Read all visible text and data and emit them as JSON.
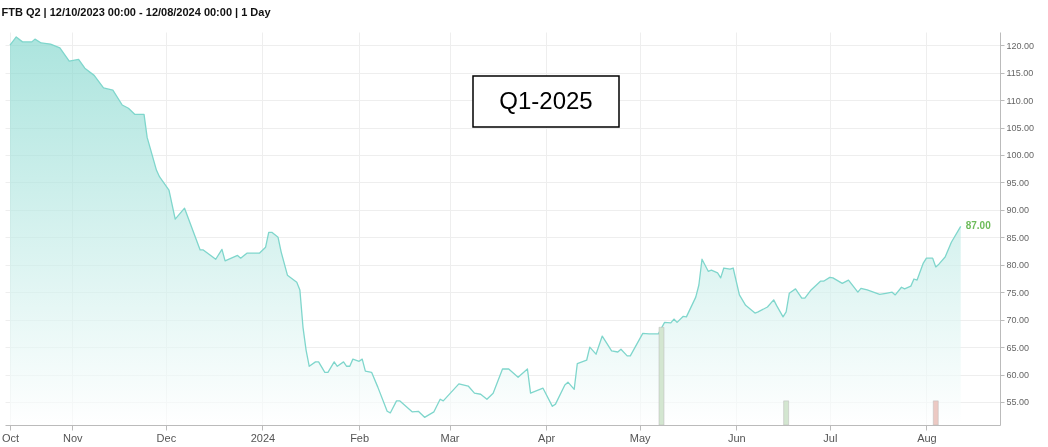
{
  "chart_data": {
    "type": "area",
    "title": "FTB Q2 | 12/10/2023 00:00 - 12/08/2024 00:00 | 1 Day",
    "annotations": [
      "Q1-2025",
      {
        "text": "87.00",
        "x": "2024-08-12",
        "y": 87
      }
    ],
    "xlim": [
      "2023-10-12",
      "2024-08-23"
    ],
    "xticks": [
      {
        "value": "2023-10-12",
        "label": "Oct"
      },
      {
        "value": "2023-11-01",
        "label": "Nov"
      },
      {
        "value": "2023-12-01",
        "label": "Dec"
      },
      {
        "value": "2024-01-01",
        "label": "2024"
      },
      {
        "value": "2024-02-01",
        "label": "Feb"
      },
      {
        "value": "2024-03-01",
        "label": "Mar"
      },
      {
        "value": "2024-04-01",
        "label": "Apr"
      },
      {
        "value": "2024-05-01",
        "label": "May"
      },
      {
        "value": "2024-06-01",
        "label": "Jun"
      },
      {
        "value": "2024-07-01",
        "label": "Jul"
      },
      {
        "value": "2024-08-01",
        "label": "Aug"
      }
    ],
    "ylim": [
      50.8,
      122.4
    ],
    "yticks": [
      {
        "value": 55,
        "label": "55.00"
      },
      {
        "value": 60,
        "label": "60.00"
      },
      {
        "value": 65,
        "label": "65.00"
      },
      {
        "value": 70,
        "label": "70.00"
      },
      {
        "value": 75,
        "label": "75.00"
      },
      {
        "value": 80,
        "label": "80.00"
      },
      {
        "value": 85,
        "label": "85.00"
      },
      {
        "value": 90,
        "label": "90.00"
      },
      {
        "value": 95,
        "label": "95.00"
      },
      {
        "value": 100,
        "label": "100.00"
      },
      {
        "value": 105,
        "label": "105.00"
      },
      {
        "value": 110,
        "label": "110.00"
      },
      {
        "value": 115,
        "label": "115.00"
      },
      {
        "value": 120,
        "label": "120.00"
      }
    ],
    "grid": true,
    "series": [
      {
        "color": "#7fd6cc",
        "x": [
          "2023-10-12",
          "2023-10-14",
          "2023-10-16",
          "2023-10-19",
          "2023-10-20",
          "2023-10-22",
          "2023-10-25",
          "2023-10-28",
          "2023-10-31",
          "2023-11-03",
          "2023-11-05",
          "2023-11-08",
          "2023-11-11",
          "2023-11-14",
          "2023-11-17",
          "2023-11-19",
          "2023-11-21",
          "2023-11-24",
          "2023-11-25",
          "2023-11-28",
          "2023-11-29",
          "2023-12-02",
          "2023-12-04",
          "2023-12-07",
          "2023-12-12",
          "2023-12-13",
          "2023-12-17",
          "2023-12-19",
          "2023-12-20",
          "2023-12-24",
          "2023-12-25",
          "2023-12-27",
          "2023-12-31",
          "2024-01-02",
          "2024-01-03",
          "2024-01-04",
          "2024-01-06",
          "2024-01-07",
          "2024-01-09",
          "2024-01-12",
          "2024-01-13",
          "2024-01-14",
          "2024-01-15",
          "2024-01-16",
          "2024-01-18",
          "2024-01-19",
          "2024-01-21",
          "2024-01-22",
          "2024-01-24",
          "2024-01-25",
          "2024-01-27",
          "2024-01-28",
          "2024-01-29",
          "2024-01-30",
          "2024-02-01",
          "2024-02-02",
          "2024-02-03",
          "2024-02-05",
          "2024-02-07",
          "2024-02-10",
          "2024-02-11",
          "2024-02-13",
          "2024-02-14",
          "2024-02-17",
          "2024-02-18",
          "2024-02-20",
          "2024-02-22",
          "2024-02-25",
          "2024-02-27",
          "2024-02-28",
          "2024-03-04",
          "2024-03-07",
          "2024-03-09",
          "2024-03-11",
          "2024-03-13",
          "2024-03-15",
          "2024-03-18",
          "2024-03-20",
          "2024-03-23",
          "2024-03-26",
          "2024-03-27",
          "2024-03-31",
          "2024-04-03",
          "2024-04-04",
          "2024-04-07",
          "2024-04-08",
          "2024-04-10",
          "2024-04-11",
          "2024-04-14",
          "2024-04-15",
          "2024-04-17",
          "2024-04-19",
          "2024-04-22",
          "2024-04-24",
          "2024-04-25",
          "2024-04-27",
          "2024-04-28",
          "2024-05-02",
          "2024-05-04",
          "2024-05-07",
          "2024-05-09",
          "2024-05-11",
          "2024-05-12",
          "2024-05-13",
          "2024-05-15",
          "2024-05-16",
          "2024-05-19",
          "2024-05-20",
          "2024-05-21",
          "2024-05-23",
          "2024-05-24",
          "2024-05-26",
          "2024-05-27",
          "2024-05-28",
          "2024-05-30",
          "2024-05-31",
          "2024-06-02",
          "2024-06-04",
          "2024-06-07",
          "2024-06-08",
          "2024-06-11",
          "2024-06-13",
          "2024-06-14",
          "2024-06-16",
          "2024-06-17",
          "2024-06-18",
          "2024-06-20",
          "2024-06-22",
          "2024-06-23",
          "2024-06-25",
          "2024-06-28",
          "2024-06-29",
          "2024-07-01",
          "2024-07-02",
          "2024-07-05",
          "2024-07-07",
          "2024-07-10",
          "2024-07-11",
          "2024-07-13",
          "2024-07-15",
          "2024-07-17",
          "2024-07-19",
          "2024-07-21",
          "2024-07-22",
          "2024-07-24",
          "2024-07-25",
          "2024-07-27",
          "2024-07-28",
          "2024-07-29",
          "2024-07-31",
          "2024-08-01",
          "2024-08-03",
          "2024-08-04",
          "2024-08-05",
          "2024-08-07",
          "2024-08-09",
          "2024-08-12"
        ],
        "values": [
          120.0,
          121.5,
          120.6,
          120.6,
          121.1,
          120.4,
          120.2,
          119.5,
          117.1,
          117.4,
          115.8,
          114.5,
          112.2,
          111.8,
          109.1,
          108.5,
          107.4,
          107.4,
          103.2,
          97.2,
          96.0,
          93.6,
          88.3,
          90.3,
          82.7,
          82.7,
          81.0,
          82.8,
          80.7,
          81.7,
          81.2,
          82.1,
          82.1,
          83.2,
          85.9,
          85.9,
          85.0,
          82.3,
          78.1,
          76.8,
          75.4,
          68.6,
          64.4,
          61.5,
          62.3,
          62.3,
          60.4,
          60.4,
          62.3,
          61.5,
          62.3,
          61.5,
          61.5,
          62.8,
          62.4,
          62.8,
          60.6,
          60.4,
          57.7,
          53.3,
          53.0,
          55.2,
          55.2,
          53.7,
          53.2,
          53.3,
          52.2,
          53.2,
          55.5,
          55.2,
          58.3,
          57.9,
          56.6,
          56.4,
          55.5,
          56.6,
          61.0,
          61.0,
          59.5,
          61.0,
          56.6,
          57.5,
          54.2,
          54.6,
          58.1,
          58.6,
          57.3,
          62.0,
          62.6,
          65.0,
          63.7,
          67.0,
          64.3,
          64.1,
          64.6,
          63.4,
          63.4,
          67.5,
          67.4,
          67.4,
          69.5,
          69.4,
          70.1,
          69.5,
          70.6,
          70.5,
          74.1,
          76.3,
          81.0,
          78.8,
          79.0,
          78.5,
          77.6,
          79.4,
          79.2,
          79.4,
          74.5,
          72.6,
          71.2,
          71.4,
          72.3,
          73.6,
          72.5,
          70.5,
          71.4,
          74.8,
          75.6,
          73.9,
          73.9,
          75.4,
          77.0,
          77.0,
          77.7,
          77.6,
          76.6,
          77.2,
          75.0,
          75.7,
          75.4,
          75.0,
          74.6,
          74.8,
          75.0,
          74.5,
          75.9,
          75.6,
          76.1,
          77.4,
          77.2,
          80.3,
          81.2,
          81.2,
          79.6,
          80.1,
          81.4,
          84.1,
          87.0
        ]
      },
      {
        "type": "bar",
        "colors": [
          "#d3e6d0",
          "#d3e6d0",
          "#ecc9c3"
        ],
        "x": [
          "2024-05-08",
          "2024-06-17",
          "2024-08-04"
        ],
        "base": [
          50.8,
          50.8,
          50.8
        ],
        "values": [
          17.8,
          4.4,
          4.4
        ]
      }
    ]
  }
}
